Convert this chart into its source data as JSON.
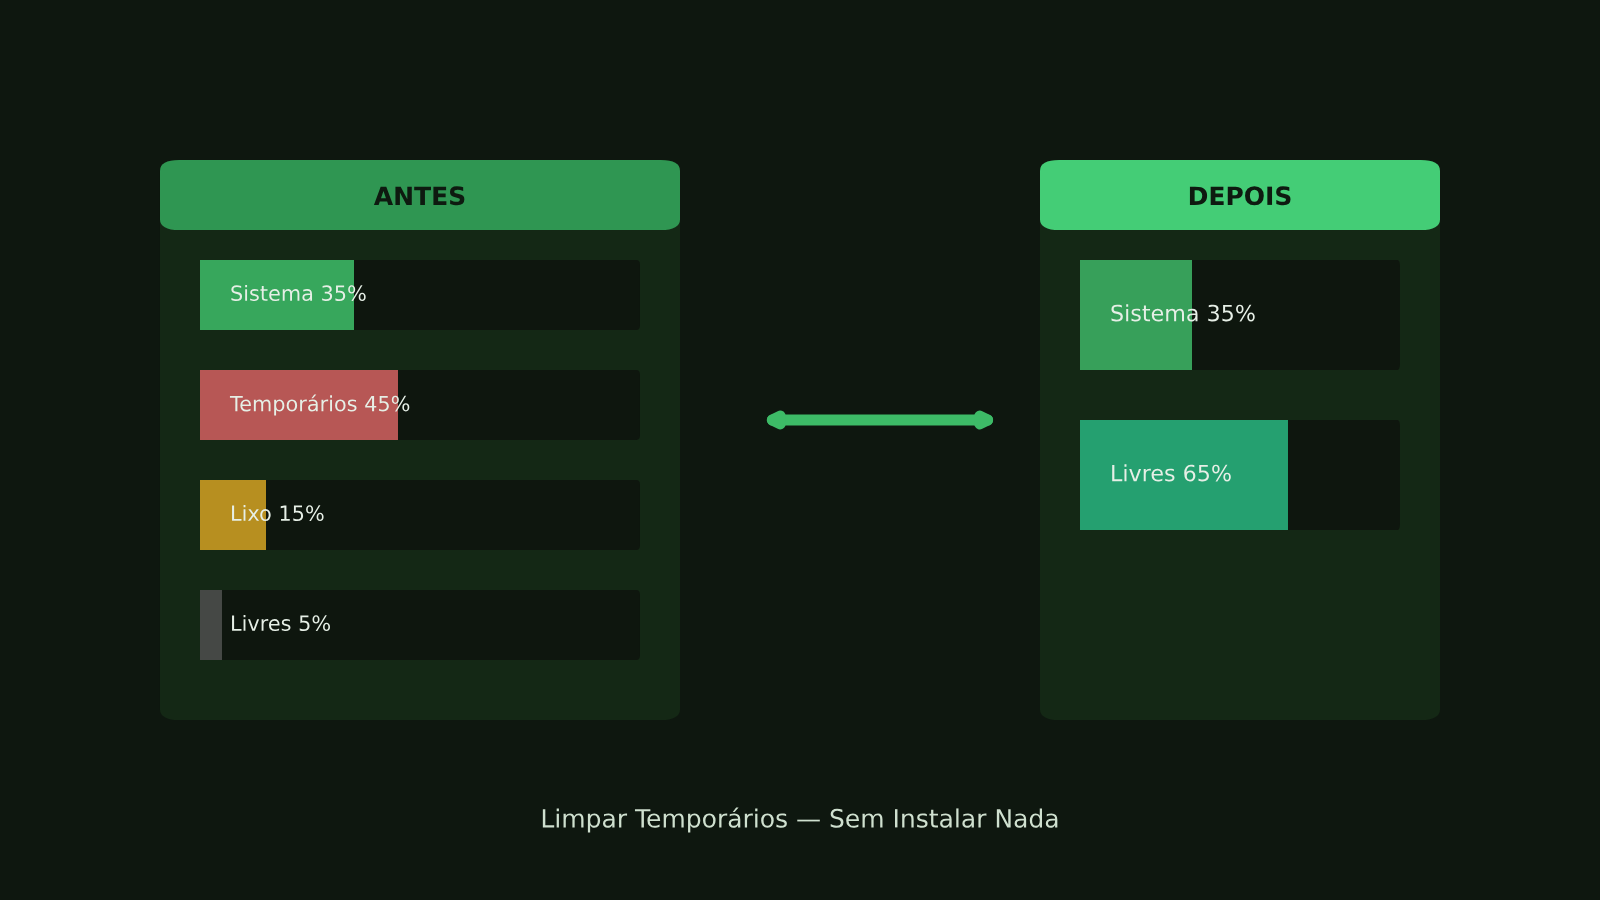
{
  "chart_data": [
    {
      "type": "bar",
      "orientation": "horizontal",
      "title": "ANTES",
      "categories": [
        null,
        null,
        null,
        null
      ],
      "values": [
        35,
        45,
        15,
        5
      ],
      "colors": [
        "#37a75c",
        "#b75755",
        "#b78f20",
        "#454845"
      ],
      "value_labels": [
        "Sistema 35%",
        "Temporários 45%",
        "Lixo 15%",
        "Livres 5%"
      ],
      "xlim": [
        0,
        100
      ],
      "tick_labels": false,
      "annotations": [
        "Limpar Temporários — Sem Instalar Nada"
      ]
    },
    {
      "type": "bar",
      "orientation": "horizontal",
      "title": "DEPOIS",
      "categories": [
        null,
        null
      ],
      "values": [
        35,
        65
      ],
      "colors": [
        "#37a05a",
        "#25a070"
      ],
      "value_labels": [
        "Sistema 35%",
        "Livres 65%"
      ],
      "xlim": [
        0,
        100
      ],
      "tick_labels": false
    }
  ]
}
